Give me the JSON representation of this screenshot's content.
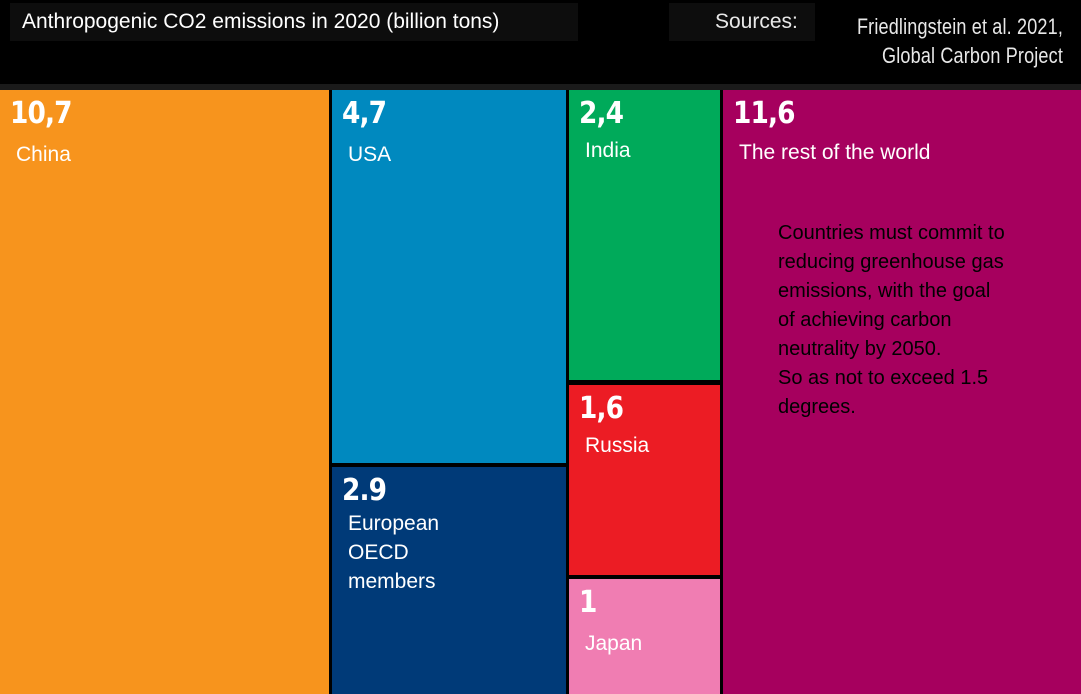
{
  "header": {
    "title": "Anthropogenic CO2 emissions in 2020 (billion tons)",
    "sources_label": "Sources:",
    "sources_lines": [
      "Friedlingstein et al. 2021,",
      "Global Carbon Project"
    ]
  },
  "chart_data": {
    "type": "treemap",
    "title": "Anthropogenic CO2 emissions in 2020 (billion tons)",
    "items": [
      {
        "name": "China",
        "value": 10.7,
        "value_label": "10,7",
        "color": "#f7941d"
      },
      {
        "name": "USA",
        "value": 4.7,
        "value_label": "4,7",
        "color": "#0089bf"
      },
      {
        "name": "European OECD members",
        "value": 2.9,
        "value_label": "2.9",
        "color": "#003a78"
      },
      {
        "name": "India",
        "value": 2.4,
        "value_label": "2,4",
        "color": "#00aa5a"
      },
      {
        "name": "Russia",
        "value": 1.6,
        "value_label": "1,6",
        "color": "#ec1c24"
      },
      {
        "name": "Japan",
        "value": 1,
        "value_label": "1",
        "color": "#f07db2"
      },
      {
        "name": "The rest of the world",
        "value": 11.6,
        "value_label": "11,6",
        "color": "#a6005e"
      }
    ],
    "annotation": "Countries must commit to\nreducing greenhouse gas\nemissions, with the goal\nof achieving carbon\nneutrality by 2050.\nSo as not to exceed 1.5\ndegrees."
  }
}
